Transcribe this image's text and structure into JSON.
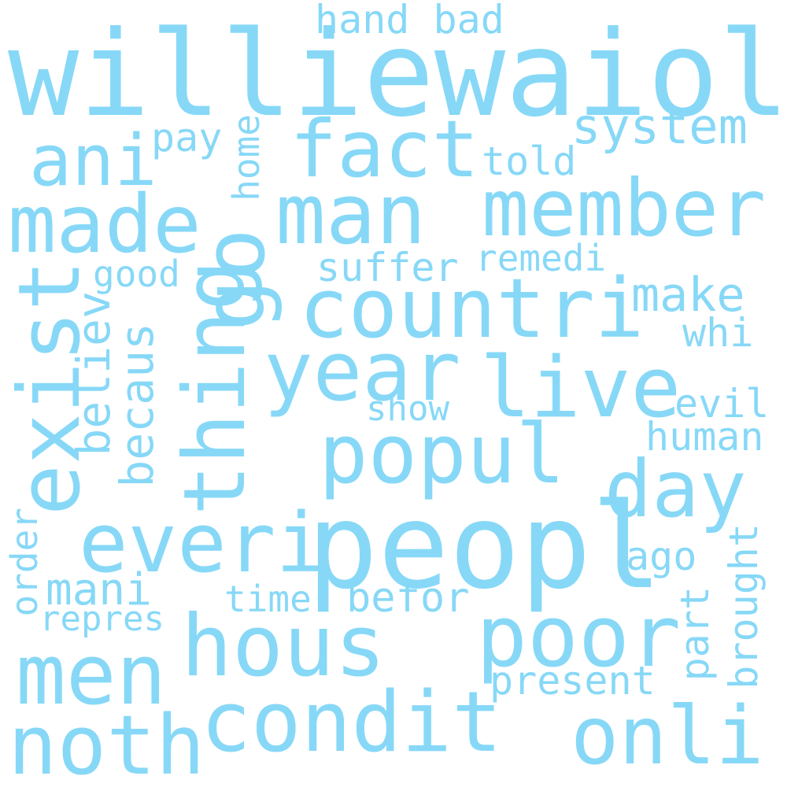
{
  "words": {
    "williewaiola": "williewaiola",
    "hand_bad": "hand bad",
    "ani": "ani",
    "fact": "fact",
    "system": "system",
    "pay": "pay",
    "home": "home",
    "told": "told",
    "made": "made",
    "man": "man",
    "member": "member",
    "go": "go",
    "suffer": "suffer",
    "remedi": "remedi",
    "good": "good",
    "exist": "exist",
    "thing": "thing",
    "countri": "countri",
    "make": "make",
    "believ": "believ",
    "whi": "whi",
    "becaus": "becaus",
    "year": "year",
    "live": "live",
    "show": "show",
    "evil": "evil",
    "popul": "popul",
    "human": "human",
    "day": "day",
    "order": "order",
    "everi": "everi",
    "peopl": "peopl",
    "brought": "brought",
    "ago": "ago",
    "mani": "mani",
    "part": "part",
    "time": "time",
    "befor": "befor",
    "repres": "repres",
    "hous": "hous",
    "poor": "poor",
    "men": "men",
    "present": "present",
    "condit": "condit",
    "noth": "noth",
    "onli": "onli"
  },
  "colors": {
    "word": "#87d8f7",
    "background": "#ffffff"
  }
}
